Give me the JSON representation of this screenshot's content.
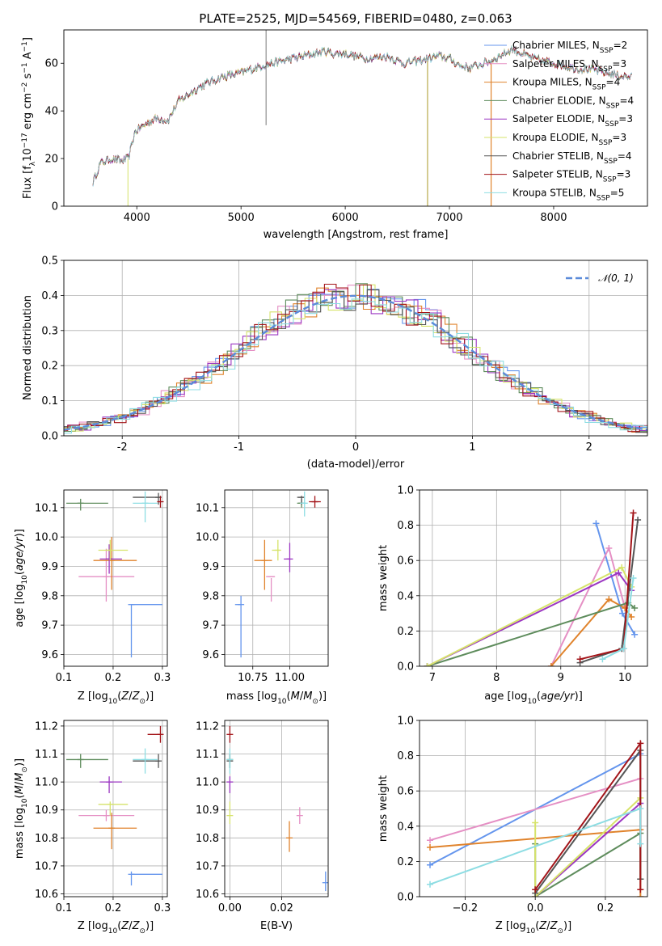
{
  "chart_data": [
    {
      "type": "line",
      "title": "PLATE=2525, MJD=54569, FIBERID=0480, z=0.063",
      "xlabel": "wavelength [Angstrom, rest frame]",
      "ylabel": "Flux [f_λ 10^-17 erg cm^-2 s^-1 A^-1]",
      "xlim": [
        3300,
        8900
      ],
      "ylim": [
        0,
        74
      ],
      "xticks": [
        4000,
        5000,
        6000,
        7000,
        8000
      ],
      "yticks": [
        0,
        20,
        40,
        60
      ],
      "grid": false,
      "legend_position": "top-right",
      "series": [
        {
          "name": "Chabrier MILES, N_SSP=2",
          "color": "#6495ed"
        },
        {
          "name": "Salpeter MILES, N_SSP=3",
          "color": "#e58fc4"
        },
        {
          "name": "Kroupa MILES, N_SSP=4",
          "color": "#e0832c"
        },
        {
          "name": "Chabrier ELODIE, N_SSP=4",
          "color": "#5e8c5c"
        },
        {
          "name": "Salpeter ELODIE, N_SSP=3",
          "color": "#9b36c2"
        },
        {
          "name": "Kroupa ELODIE, N_SSP=3",
          "color": "#d6e36a"
        },
        {
          "name": "Chabrier STELIB, N_SSP=4",
          "color": "#555555"
        },
        {
          "name": "Salpeter STELIB, N_SSP=3",
          "color": "#a31419"
        },
        {
          "name": "Kroupa STELIB, N_SSP=5",
          "color": "#8ddde3"
        }
      ],
      "approx_continuum": [
        [
          3580,
          10
        ],
        [
          3650,
          18
        ],
        [
          3750,
          20
        ],
        [
          3850,
          19
        ],
        [
          3920,
          20
        ],
        [
          3980,
          31
        ],
        [
          4100,
          35
        ],
        [
          4200,
          37
        ],
        [
          4300,
          36
        ],
        [
          4400,
          44
        ],
        [
          4600,
          50
        ],
        [
          4800,
          54
        ],
        [
          5000,
          56
        ],
        [
          5200,
          59
        ],
        [
          5400,
          61
        ],
        [
          5600,
          63
        ],
        [
          5800,
          65
        ],
        [
          5900,
          64
        ],
        [
          6000,
          64
        ],
        [
          6200,
          62
        ],
        [
          6400,
          63
        ],
        [
          6560,
          60
        ],
        [
          6700,
          61
        ],
        [
          6900,
          63
        ],
        [
          7000,
          62
        ],
        [
          7100,
          59
        ],
        [
          7200,
          58
        ],
        [
          7400,
          61
        ],
        [
          7600,
          66
        ],
        [
          7800,
          62
        ],
        [
          8000,
          60
        ],
        [
          8200,
          58
        ],
        [
          8400,
          57
        ],
        [
          8600,
          55
        ],
        [
          8750,
          54
        ]
      ]
    },
    {
      "type": "histogram",
      "xlabel": "(data-model)/error",
      "ylabel": "Normed distribution",
      "xlim": [
        -2.5,
        2.5
      ],
      "ylim": [
        0,
        0.5
      ],
      "xticks": [
        -2,
        -1,
        0,
        1,
        2
      ],
      "yticks": [
        0.0,
        0.1,
        0.2,
        0.3,
        0.4,
        0.5
      ],
      "grid": true,
      "legend_position": "top-right",
      "reference_curve": {
        "name": "𝒩(0, 1)",
        "mean": 0,
        "sigma": 1,
        "color": "#5b8bd9"
      },
      "bin_width": 0.1
    },
    {
      "type": "scatter",
      "xlabel": "Z [log10(Z/Z⊙)]",
      "ylabel": "age [log10(age/yr)]",
      "xlim": [
        0.1,
        0.31
      ],
      "ylim": [
        9.56,
        10.16
      ],
      "xticks": [
        0.1,
        0.2,
        0.3
      ],
      "yticks": [
        9.6,
        9.7,
        9.8,
        9.9,
        10.0,
        10.1
      ],
      "grid": true,
      "points": [
        {
          "series": "Chabrier MILES",
          "color": "#6495ed",
          "x": 0.237,
          "y": 9.77,
          "x_lo": 0.237,
          "x_hi": 0.3,
          "y_lo": 9.59,
          "y_hi": 9.77
        },
        {
          "series": "Salpeter MILES",
          "color": "#e58fc4",
          "x": 0.186,
          "y": 9.865,
          "x_lo": 0.13,
          "x_hi": 0.243,
          "y_lo": 9.78,
          "y_hi": 9.96
        },
        {
          "series": "Kroupa MILES",
          "color": "#e0832c",
          "x": 0.197,
          "y": 9.92,
          "x_lo": 0.16,
          "x_hi": 0.248,
          "y_lo": 9.82,
          "y_hi": 10.0
        },
        {
          "series": "Chabrier ELODIE",
          "color": "#5e8c5c",
          "x": 0.134,
          "y": 10.115,
          "x_lo": 0.105,
          "x_hi": 0.19,
          "y_lo": 10.09,
          "y_hi": 10.13
        },
        {
          "series": "Salpeter ELODIE",
          "color": "#9b36c2",
          "x": 0.192,
          "y": 9.925,
          "x_lo": 0.173,
          "x_hi": 0.218,
          "y_lo": 9.875,
          "y_hi": 9.975
        },
        {
          "series": "Kroupa ELODIE",
          "color": "#d6e36a",
          "x": 0.194,
          "y": 9.955,
          "x_lo": 0.17,
          "x_hi": 0.23,
          "y_lo": 9.92,
          "y_hi": 9.99
        },
        {
          "series": "Chabrier STELIB",
          "color": "#555555",
          "x": 0.292,
          "y": 10.135,
          "x_lo": 0.24,
          "x_hi": 0.295,
          "y_lo": 10.11,
          "y_hi": 10.15
        },
        {
          "series": "Salpeter STELIB",
          "color": "#a31419",
          "x": 0.296,
          "y": 10.12,
          "x_lo": 0.294,
          "x_hi": 0.298,
          "y_lo": 10.1,
          "y_hi": 10.14
        },
        {
          "series": "Kroupa STELIB",
          "color": "#8ddde3",
          "x": 0.265,
          "y": 10.115,
          "x_lo": 0.24,
          "x_hi": 0.29,
          "y_lo": 10.05,
          "y_hi": 10.155
        }
      ]
    },
    {
      "type": "scatter",
      "xlabel": "mass [log10(M/M⊙)]",
      "xlim": [
        10.56,
        11.26
      ],
      "ylim": [
        9.56,
        10.16
      ],
      "xticks": [
        10.75,
        11.0
      ],
      "xticklabels": [
        "10.75",
        "11.00"
      ],
      "yticks": [
        9.6,
        9.7,
        9.8,
        9.9,
        10.0,
        10.1
      ],
      "grid": true,
      "points": [
        {
          "series": "Chabrier MILES",
          "color": "#6495ed",
          "x": 10.67,
          "y": 9.77,
          "x_lo": 10.63,
          "x_hi": 10.67,
          "y_lo": 9.59,
          "y_hi": 9.8
        },
        {
          "series": "Salpeter MILES",
          "color": "#e58fc4",
          "x": 10.875,
          "y": 9.865,
          "x_lo": 10.84,
          "x_hi": 10.9,
          "y_lo": 9.78,
          "y_hi": 9.86
        },
        {
          "series": "Kroupa MILES",
          "color": "#e0832c",
          "x": 10.83,
          "y": 9.92,
          "x_lo": 10.76,
          "x_hi": 10.88,
          "y_lo": 9.82,
          "y_hi": 9.99
        },
        {
          "series": "Chabrier ELODIE",
          "color": "#5e8c5c",
          "x": 11.08,
          "y": 10.115,
          "x_lo": 11.05,
          "x_hi": 11.1,
          "y_lo": 10.1,
          "y_hi": 10.13
        },
        {
          "series": "Salpeter ELODIE",
          "color": "#9b36c2",
          "x": 11.0,
          "y": 9.925,
          "x_lo": 10.96,
          "x_hi": 11.0,
          "y_lo": 9.88,
          "y_hi": 9.98
        },
        {
          "series": "Kroupa ELODIE",
          "color": "#d6e36a",
          "x": 10.92,
          "y": 9.955,
          "x_lo": 10.88,
          "x_hi": 10.93,
          "y_lo": 9.92,
          "y_hi": 9.99
        },
        {
          "series": "Chabrier STELIB",
          "color": "#555555",
          "x": 11.08,
          "y": 10.135,
          "x_lo": 11.05,
          "x_hi": 11.1,
          "y_lo": 10.11,
          "y_hi": 10.14
        },
        {
          "series": "Salpeter STELIB",
          "color": "#a31419",
          "x": 11.17,
          "y": 10.12,
          "x_lo": 11.13,
          "x_hi": 11.21,
          "y_lo": 10.1,
          "y_hi": 10.14
        },
        {
          "series": "Kroupa STELIB",
          "color": "#8ddde3",
          "x": 11.1,
          "y": 10.115,
          "x_lo": 11.07,
          "x_hi": 11.11,
          "y_lo": 10.07,
          "y_hi": 10.155
        }
      ]
    },
    {
      "type": "line",
      "xlabel": "age [log10(age/yr)]",
      "ylabel": "mass weight",
      "xlim": [
        6.8,
        10.35
      ],
      "ylim": [
        0,
        1
      ],
      "xticks": [
        7,
        8,
        9,
        10
      ],
      "yticks": [
        0.0,
        0.2,
        0.4,
        0.6,
        0.8,
        1.0
      ],
      "grid": true,
      "series": [
        {
          "name": "Chabrier MILES",
          "color": "#6495ed",
          "x": [
            9.55,
            9.96,
            10.15
          ],
          "y": [
            0.81,
            0.3,
            0.18
          ]
        },
        {
          "name": "Salpeter MILES",
          "color": "#e58fc4",
          "x": [
            8.85,
            9.75,
            10.0
          ],
          "y": [
            0.0,
            0.67,
            0.33
          ]
        },
        {
          "name": "Kroupa MILES",
          "color": "#e0832c",
          "x": [
            8.85,
            9.75,
            10.0,
            10.1
          ],
          "y": [
            0.0,
            0.38,
            0.33,
            0.28
          ]
        },
        {
          "name": "Chabrier ELODIE",
          "color": "#5e8c5c",
          "x": [
            6.92,
            10.05,
            10.15
          ],
          "y": [
            0.0,
            0.36,
            0.33
          ]
        },
        {
          "name": "Salpeter ELODIE",
          "color": "#9b36c2",
          "x": [
            6.92,
            9.9,
            10.1
          ],
          "y": [
            0.0,
            0.53,
            0.43
          ]
        },
        {
          "name": "Kroupa ELODIE",
          "color": "#d6e36a",
          "x": [
            6.92,
            9.95,
            10.1
          ],
          "y": [
            0.0,
            0.56,
            0.45
          ]
        },
        {
          "name": "Chabrier STELIB",
          "color": "#555555",
          "x": [
            9.3,
            9.95,
            10.2
          ],
          "y": [
            0.02,
            0.1,
            0.83
          ]
        },
        {
          "name": "Salpeter STELIB",
          "color": "#a31419",
          "x": [
            9.3,
            9.98,
            10.13
          ],
          "y": [
            0.04,
            0.1,
            0.87
          ]
        },
        {
          "name": "Kroupa STELIB",
          "color": "#8ddde3",
          "x": [
            9.65,
            9.98,
            10.13
          ],
          "y": [
            0.04,
            0.1,
            0.5
          ]
        }
      ]
    },
    {
      "type": "scatter",
      "xlabel": "Z [log10(Z/Z⊙)]",
      "ylabel": "mass [log10(M/M⊙)]",
      "xlim": [
        0.1,
        0.31
      ],
      "ylim": [
        10.59,
        11.22
      ],
      "xticks": [
        0.1,
        0.2,
        0.3
      ],
      "yticks": [
        10.6,
        10.7,
        10.8,
        10.9,
        11.0,
        11.1,
        11.2
      ],
      "grid": true,
      "points": [
        {
          "series": "Chabrier MILES",
          "color": "#6495ed",
          "x": 0.237,
          "y": 10.67,
          "x_lo": 0.237,
          "x_hi": 0.3,
          "y_lo": 10.63,
          "y_hi": 10.68
        },
        {
          "series": "Salpeter MILES",
          "color": "#e58fc4",
          "x": 0.186,
          "y": 10.88,
          "x_lo": 0.13,
          "x_hi": 0.243,
          "y_lo": 10.86,
          "y_hi": 10.9
        },
        {
          "series": "Kroupa MILES",
          "color": "#e0832c",
          "x": 0.197,
          "y": 10.835,
          "x_lo": 0.16,
          "x_hi": 0.248,
          "y_lo": 10.76,
          "y_hi": 10.89
        },
        {
          "series": "Chabrier ELODIE",
          "color": "#5e8c5c",
          "x": 0.134,
          "y": 11.08,
          "x_lo": 0.105,
          "x_hi": 0.19,
          "y_lo": 11.05,
          "y_hi": 11.1
        },
        {
          "series": "Salpeter ELODIE",
          "color": "#9b36c2",
          "x": 0.192,
          "y": 11.0,
          "x_lo": 0.173,
          "x_hi": 0.218,
          "y_lo": 10.96,
          "y_hi": 11.02
        },
        {
          "series": "Kroupa ELODIE",
          "color": "#d6e36a",
          "x": 0.194,
          "y": 10.92,
          "x_lo": 0.17,
          "x_hi": 0.23,
          "y_lo": 10.88,
          "y_hi": 10.93
        },
        {
          "series": "Chabrier STELIB",
          "color": "#555555",
          "x": 0.292,
          "y": 11.075,
          "x_lo": 0.24,
          "x_hi": 0.295,
          "y_lo": 11.05,
          "y_hi": 11.1
        },
        {
          "series": "Salpeter STELIB",
          "color": "#a31419",
          "x": 0.296,
          "y": 11.17,
          "x_lo": 0.27,
          "x_hi": 0.298,
          "y_lo": 11.14,
          "y_hi": 11.2
        },
        {
          "series": "Kroupa STELIB",
          "color": "#8ddde3",
          "x": 0.265,
          "y": 11.08,
          "x_lo": 0.24,
          "x_hi": 0.29,
          "y_lo": 11.03,
          "y_hi": 11.12
        }
      ]
    },
    {
      "type": "scatter",
      "xlabel": "E(B-V)",
      "xlim": [
        -0.002,
        0.038
      ],
      "ylim": [
        10.59,
        11.22
      ],
      "xticks": [
        0.0,
        0.02
      ],
      "xticklabels": [
        "0.00",
        "0.02"
      ],
      "yticks": [
        10.6,
        10.7,
        10.8,
        10.9,
        11.0,
        11.1,
        11.2
      ],
      "grid": true,
      "points": [
        {
          "series": "Chabrier MILES",
          "color": "#6495ed",
          "x": 0.037,
          "y": 10.64,
          "y_lo": 10.61,
          "y_hi": 10.68
        },
        {
          "series": "Salpeter MILES",
          "color": "#e58fc4",
          "x": 0.027,
          "y": 10.88,
          "y_lo": 10.85,
          "y_hi": 10.91
        },
        {
          "series": "Kroupa MILES",
          "color": "#e0832c",
          "x": 0.023,
          "y": 10.8,
          "y_lo": 10.75,
          "y_hi": 10.86
        },
        {
          "series": "Chabrier ELODIE",
          "color": "#5e8c5c",
          "x": 0.0,
          "y": 11.08,
          "y_lo": 11.05,
          "y_hi": 11.1
        },
        {
          "series": "Salpeter ELODIE",
          "color": "#9b36c2",
          "x": 0.0,
          "y": 11.0,
          "y_lo": 10.96,
          "y_hi": 11.02
        },
        {
          "series": "Kroupa ELODIE",
          "color": "#d6e36a",
          "x": 0.0,
          "y": 10.88,
          "y_lo": 10.85,
          "y_hi": 10.93
        },
        {
          "series": "Chabrier STELIB",
          "color": "#555555",
          "x": 0.0,
          "y": 11.075,
          "y_lo": 11.05,
          "y_hi": 11.1
        },
        {
          "series": "Salpeter STELIB",
          "color": "#a31419",
          "x": 0.0,
          "y": 11.17,
          "y_lo": 11.14,
          "y_hi": 11.2
        },
        {
          "series": "Kroupa STELIB",
          "color": "#8ddde3",
          "x": 0.0,
          "y": 11.08,
          "y_lo": 11.03,
          "y_hi": 11.12
        }
      ]
    },
    {
      "type": "line",
      "xlabel": "Z [log10(Z/Z⊙)]",
      "ylabel": "mass weight",
      "xlim": [
        -0.33,
        0.32
      ],
      "ylim": [
        0,
        1
      ],
      "xticks": [
        -0.2,
        0.0,
        0.2
      ],
      "xticklabels": [
        "−0.2",
        "0.0",
        "0.2"
      ],
      "yticks": [
        0.0,
        0.2,
        0.4,
        0.6,
        0.8,
        1.0
      ],
      "grid": true,
      "series": [
        {
          "name": "Chabrier MILES",
          "color": "#6495ed",
          "x": [
            -0.3,
            0.3
          ],
          "y": [
            0.18,
            0.81
          ]
        },
        {
          "name": "Salpeter MILES",
          "color": "#e58fc4",
          "x": [
            -0.3,
            0.3
          ],
          "y": [
            0.32,
            0.67
          ]
        },
        {
          "name": "Kroupa MILES",
          "color": "#e0832c",
          "x": [
            -0.3,
            0.3,
            0.3
          ],
          "y": [
            0.28,
            0.38,
            0.0
          ]
        },
        {
          "name": "Chabrier ELODIE",
          "color": "#5e8c5c",
          "x": [
            0.0,
            0.0,
            0.3,
            0.3
          ],
          "y": [
            0.3,
            0.0,
            0.36,
            0.1
          ]
        },
        {
          "name": "Salpeter ELODIE",
          "color": "#9b36c2",
          "x": [
            0.0,
            0.3
          ],
          "y": [
            0.0,
            0.53
          ]
        },
        {
          "name": "Kroupa ELODIE",
          "color": "#d6e36a",
          "x": [
            0.0,
            0.0,
            0.3
          ],
          "y": [
            0.42,
            0.0,
            0.56
          ]
        },
        {
          "name": "Chabrier STELIB",
          "color": "#555555",
          "x": [
            0.0,
            0.3,
            0.3
          ],
          "y": [
            0.02,
            0.83,
            0.1
          ]
        },
        {
          "name": "Salpeter STELIB",
          "color": "#a31419",
          "x": [
            0.0,
            0.3,
            0.3
          ],
          "y": [
            0.04,
            0.87,
            0.04
          ]
        },
        {
          "name": "Kroupa STELIB",
          "color": "#8ddde3",
          "x": [
            -0.3,
            0.3,
            0.3
          ],
          "y": [
            0.07,
            0.5,
            0.3
          ]
        }
      ]
    }
  ]
}
